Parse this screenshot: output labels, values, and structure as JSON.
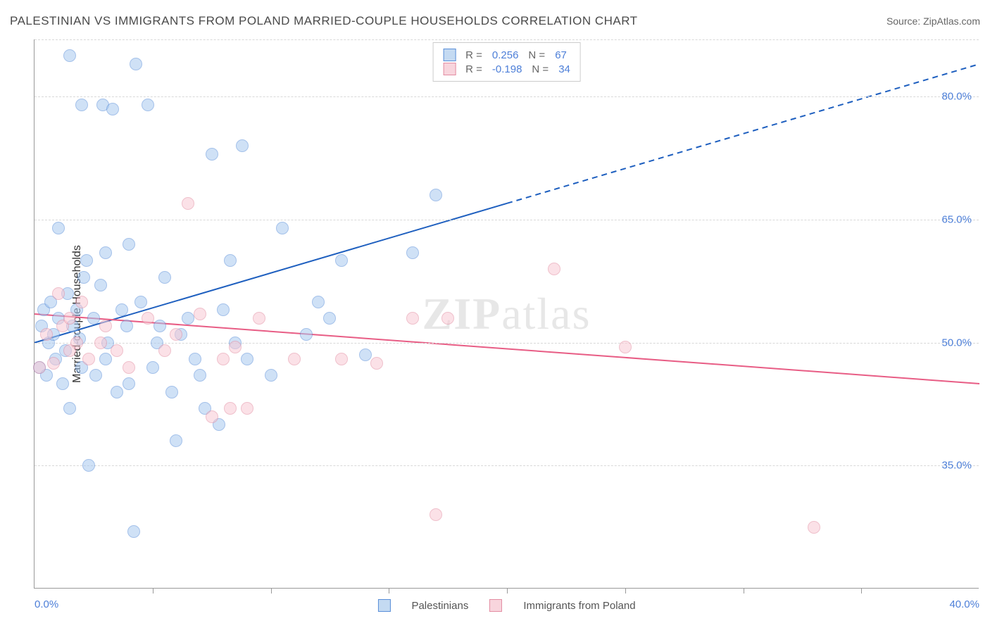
{
  "title": "PALESTINIAN VS IMMIGRANTS FROM POLAND MARRIED-COUPLE HOUSEHOLDS CORRELATION CHART",
  "source": "Source: ZipAtlas.com",
  "watermark_a": "ZIP",
  "watermark_b": "atlas",
  "chart": {
    "type": "scatter",
    "y_axis_label": "Married-couple Households",
    "xlim": [
      0,
      40
    ],
    "ylim": [
      20,
      87
    ],
    "x_tick_labels": {
      "0": "0.0%",
      "40": "40.0%"
    },
    "x_minor_ticks": [
      5,
      10,
      15,
      20,
      25,
      30,
      35
    ],
    "y_ticks": [
      35,
      50,
      65,
      80
    ],
    "y_tick_labels": {
      "35": "35.0%",
      "50": "50.0%",
      "65": "65.0%",
      "80": "80.0%"
    },
    "grid_color": "#d8d8d8",
    "axis_color": "#999999",
    "tick_label_color": "#4d7fd8",
    "label_fontsize": 15,
    "title_fontsize": 17,
    "marker_size": 18,
    "series": [
      {
        "name": "Palestinians",
        "fill_color": "#a8c9f0",
        "stroke_color": "#5a8fd9",
        "r_value": "0.256",
        "n_value": "67",
        "trend": {
          "x1": 0,
          "y1": 50,
          "x2": 20,
          "y2": 67,
          "x_dash_from": 20,
          "x2_dash": 40,
          "y2_dash": 84,
          "color": "#1e5fbf",
          "width": 2
        },
        "points": [
          [
            0.2,
            47
          ],
          [
            0.3,
            52
          ],
          [
            0.4,
            54
          ],
          [
            0.5,
            46
          ],
          [
            0.6,
            50
          ],
          [
            0.7,
            55
          ],
          [
            0.8,
            51
          ],
          [
            0.9,
            48
          ],
          [
            1.0,
            53
          ],
          [
            1.0,
            64
          ],
          [
            1.2,
            45
          ],
          [
            1.3,
            49
          ],
          [
            1.4,
            56
          ],
          [
            1.5,
            42
          ],
          [
            1.6,
            52
          ],
          [
            1.8,
            54
          ],
          [
            1.9,
            50.5
          ],
          [
            2.0,
            47
          ],
          [
            2.1,
            58
          ],
          [
            2.2,
            60
          ],
          [
            2.3,
            35
          ],
          [
            2.5,
            53
          ],
          [
            2.6,
            46
          ],
          [
            2.8,
            57
          ],
          [
            2.9,
            79
          ],
          [
            3.0,
            48
          ],
          [
            3.1,
            50
          ],
          [
            3.3,
            78.5
          ],
          [
            3.5,
            44
          ],
          [
            3.7,
            54
          ],
          [
            3.9,
            52
          ],
          [
            4.0,
            62
          ],
          [
            4.2,
            27
          ],
          [
            4.3,
            84
          ],
          [
            4.5,
            55
          ],
          [
            4.8,
            79
          ],
          [
            5.0,
            47
          ],
          [
            5.2,
            50
          ],
          [
            5.3,
            52
          ],
          [
            5.5,
            58
          ],
          [
            5.8,
            44
          ],
          [
            6.0,
            38
          ],
          [
            6.2,
            51
          ],
          [
            6.5,
            53
          ],
          [
            6.8,
            48
          ],
          [
            7.0,
            46
          ],
          [
            7.2,
            42
          ],
          [
            7.5,
            73
          ],
          [
            7.8,
            40
          ],
          [
            8.0,
            54
          ],
          [
            8.3,
            60
          ],
          [
            8.5,
            50
          ],
          [
            8.8,
            74
          ],
          [
            9.0,
            48
          ],
          [
            10.0,
            46
          ],
          [
            10.5,
            64
          ],
          [
            11.5,
            51
          ],
          [
            12.0,
            55
          ],
          [
            12.5,
            53
          ],
          [
            13.0,
            60
          ],
          [
            14.0,
            48.5
          ],
          [
            16.0,
            61
          ],
          [
            17.0,
            68
          ],
          [
            2.0,
            79
          ],
          [
            1.5,
            85
          ],
          [
            3.0,
            61
          ],
          [
            4.0,
            45
          ]
        ]
      },
      {
        "name": "Immigrants from Poland",
        "fill_color": "#f8c9d4",
        "stroke_color": "#e38da2",
        "r_value": "-0.198",
        "n_value": "34",
        "trend": {
          "x1": 0,
          "y1": 53.5,
          "x2": 40,
          "y2": 45,
          "color": "#e85d85",
          "width": 2
        },
        "points": [
          [
            0.2,
            47
          ],
          [
            0.5,
            51
          ],
          [
            0.8,
            47.5
          ],
          [
            1.0,
            56
          ],
          [
            1.2,
            52
          ],
          [
            1.5,
            53
          ],
          [
            1.8,
            50
          ],
          [
            2.0,
            55
          ],
          [
            2.3,
            48
          ],
          [
            2.8,
            50
          ],
          [
            3.0,
            52
          ],
          [
            3.5,
            49
          ],
          [
            4.0,
            47
          ],
          [
            4.8,
            53
          ],
          [
            5.5,
            49
          ],
          [
            6.0,
            51
          ],
          [
            6.5,
            67
          ],
          [
            7.0,
            53.5
          ],
          [
            7.5,
            41
          ],
          [
            8.0,
            48
          ],
          [
            8.3,
            42
          ],
          [
            8.5,
            49.5
          ],
          [
            9.0,
            42
          ],
          [
            9.5,
            53
          ],
          [
            11.0,
            48
          ],
          [
            13.0,
            48
          ],
          [
            14.5,
            47.5
          ],
          [
            16.0,
            53
          ],
          [
            17.0,
            29
          ],
          [
            17.5,
            53
          ],
          [
            22.0,
            59
          ],
          [
            25.0,
            49.5
          ],
          [
            33.0,
            27.5
          ],
          [
            1.5,
            49
          ]
        ]
      }
    ]
  },
  "legend_top": {
    "rows": [
      {
        "swatch": "blue",
        "r_label": "R =",
        "r": "0.256",
        "n_label": "N =",
        "n": "67"
      },
      {
        "swatch": "pink",
        "r_label": "R =",
        "r": "-0.198",
        "n_label": "N =",
        "n": "34"
      }
    ]
  },
  "legend_bottom": {
    "items": [
      {
        "swatch": "blue",
        "label": "Palestinians"
      },
      {
        "swatch": "pink",
        "label": "Immigrants from Poland"
      }
    ]
  }
}
